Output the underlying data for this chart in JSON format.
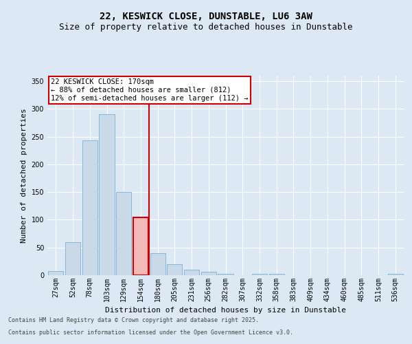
{
  "title_line1": "22, KESWICK CLOSE, DUNSTABLE, LU6 3AW",
  "title_line2": "Size of property relative to detached houses in Dunstable",
  "xlabel": "Distribution of detached houses by size in Dunstable",
  "ylabel": "Number of detached properties",
  "footer_line1": "Contains HM Land Registry data © Crown copyright and database right 2025.",
  "footer_line2": "Contains public sector information licensed under the Open Government Licence v3.0.",
  "annotation_line1": "22 KESWICK CLOSE: 170sqm",
  "annotation_line2": "← 88% of detached houses are smaller (812)",
  "annotation_line3": "12% of semi-detached houses are larger (112) →",
  "categories": [
    "27sqm",
    "52sqm",
    "78sqm",
    "103sqm",
    "129sqm",
    "154sqm",
    "180sqm",
    "205sqm",
    "231sqm",
    "256sqm",
    "282sqm",
    "307sqm",
    "332sqm",
    "358sqm",
    "383sqm",
    "409sqm",
    "434sqm",
    "460sqm",
    "485sqm",
    "511sqm",
    "536sqm"
  ],
  "bar_values": [
    8,
    59,
    243,
    290,
    150,
    104,
    40,
    20,
    10,
    6,
    2,
    0,
    3,
    2,
    0,
    0,
    0,
    0,
    0,
    0,
    2
  ],
  "bar_color": "#c9d9e8",
  "bar_edge_color": "#7bafd4",
  "highlight_bar_index": 5,
  "highlight_bar_color": "#f5b8b8",
  "highlight_bar_edge_color": "#cc0000",
  "vline_color": "#cc0000",
  "vline_x": 5.5,
  "ylim": [
    0,
    360
  ],
  "yticks": [
    0,
    50,
    100,
    150,
    200,
    250,
    300,
    350
  ],
  "background_color": "#dce9f5",
  "grid_color": "#ffffff",
  "annotation_box_facecolor": "#ffffff",
  "annotation_box_edge_color": "#cc0000",
  "title_fontsize": 10,
  "subtitle_fontsize": 9,
  "axis_label_fontsize": 8,
  "tick_label_fontsize": 7,
  "annotation_fontsize": 7.5,
  "footer_fontsize": 6,
  "ylabel_fontsize": 8
}
